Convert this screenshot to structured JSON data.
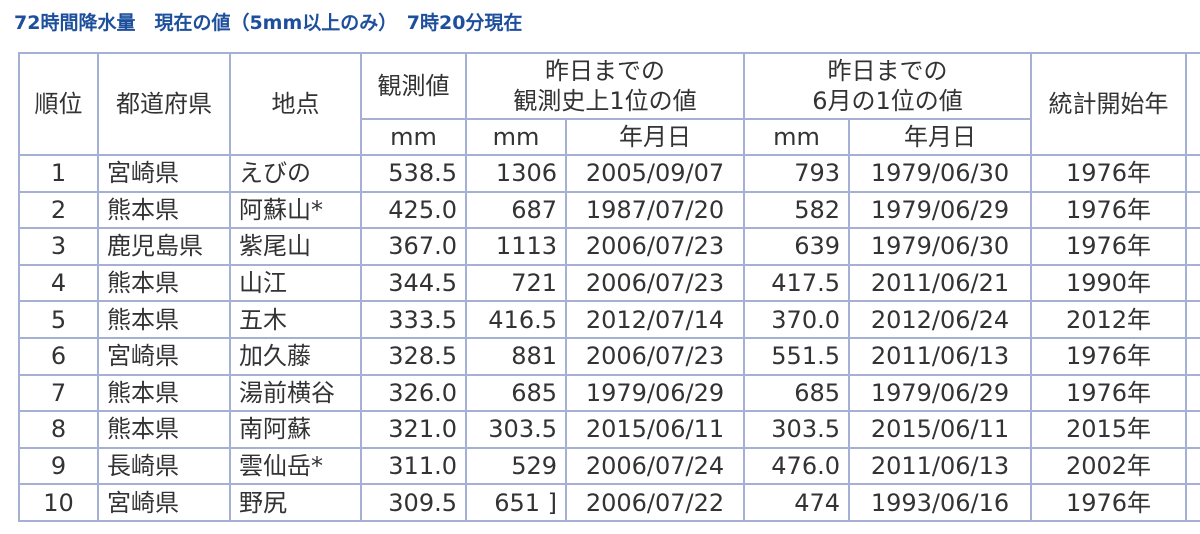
{
  "title": "72時間降水量　現在の値（5mm以上のみ）　7時20分現在",
  "header": {
    "rank": "順位",
    "prefecture": "都道府県",
    "station": "地点",
    "observed": "観測値",
    "record_all": [
      "昨日までの",
      "観測史上1位の値"
    ],
    "record_june": [
      "昨日までの",
      "6月の1位の値"
    ],
    "start_year": "統計開始年",
    "units": [
      "mm",
      "mm",
      "年月日",
      "mm",
      "年月日"
    ]
  },
  "rows": [
    [
      "1",
      "宮崎県",
      "えびの",
      "538.5",
      "1306",
      "2005/09/07",
      "793",
      "1979/06/30",
      "1976年"
    ],
    [
      "2",
      "熊本県",
      "阿蘇山*",
      "425.0",
      "687",
      "1987/07/20",
      "582",
      "1979/06/29",
      "1976年"
    ],
    [
      "3",
      "鹿児島県",
      "紫尾山",
      "367.0",
      "1113",
      "2006/07/23",
      "639",
      "1979/06/30",
      "1976年"
    ],
    [
      "4",
      "熊本県",
      "山江",
      "344.5",
      "721",
      "2006/07/23",
      "417.5",
      "2011/06/21",
      "1990年"
    ],
    [
      "5",
      "熊本県",
      "五木",
      "333.5",
      "416.5",
      "2012/07/14",
      "370.0",
      "2012/06/24",
      "2012年"
    ],
    [
      "6",
      "宮崎県",
      "加久藤",
      "328.5",
      "881",
      "2006/07/23",
      "551.5",
      "2011/06/13",
      "1976年"
    ],
    [
      "7",
      "熊本県",
      "湯前横谷",
      "326.0",
      "685",
      "1979/06/29",
      "685",
      "1979/06/29",
      "1976年"
    ],
    [
      "8",
      "熊本県",
      "南阿蘇",
      "321.0",
      "303.5",
      "2015/06/11",
      "303.5",
      "2015/06/11",
      "2015年"
    ],
    [
      "9",
      "長崎県",
      "雲仙岳*",
      "311.0",
      "529",
      "2006/07/24",
      "476.0",
      "2011/06/13",
      "2002年"
    ],
    [
      "10",
      "宮崎県",
      "野尻",
      "309.5",
      "651 ]",
      "2006/07/22",
      "474",
      "1993/06/16",
      "1976年"
    ]
  ]
}
